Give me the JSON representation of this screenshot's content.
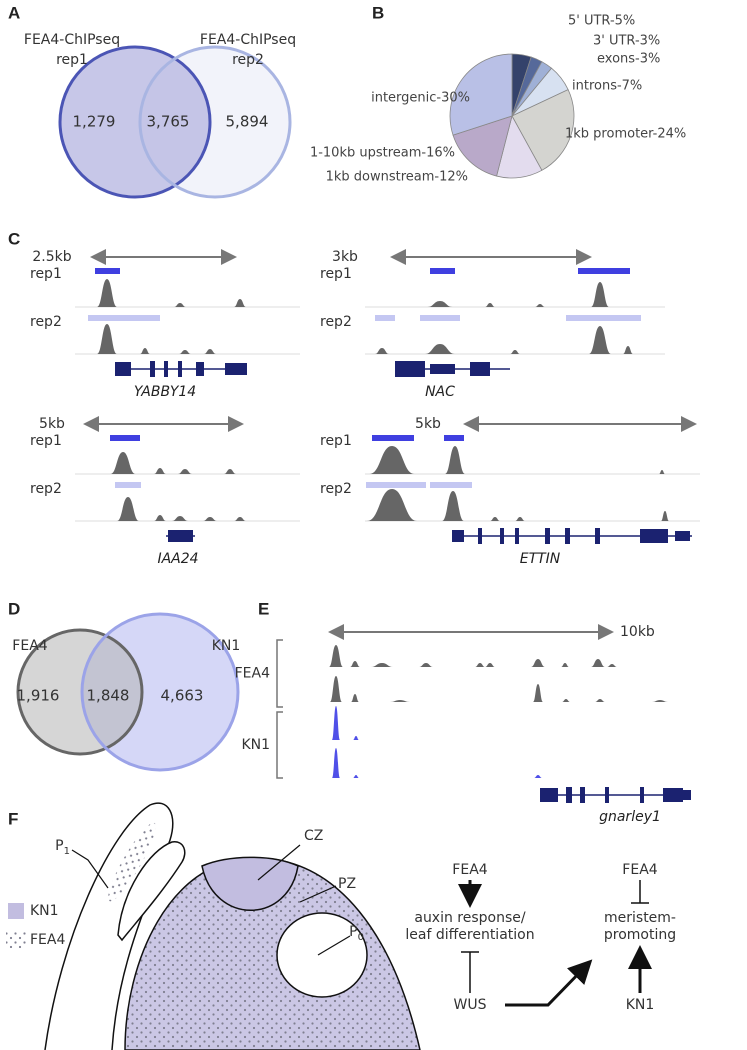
{
  "panel_letters": [
    "A",
    "B",
    "C",
    "D",
    "E",
    "F"
  ],
  "panel_a": {
    "set1": [
      "FEA4-ChIPseq",
      "rep1"
    ],
    "set2": [
      "FEA4-ChIPseq",
      "rep2"
    ],
    "counts": [
      "1,279",
      "3,765",
      "5,894"
    ]
  },
  "chart_data": {
    "type": "pie",
    "categories": [
      "5' UTR-5%",
      "3' UTR-3%",
      "exons-3%",
      "introns-7%",
      "1kb promoter-24%",
      "1kb downstream-12%",
      "1-10kb upstream-16%",
      "intergenic-30%"
    ],
    "values": [
      5,
      3,
      3,
      7,
      24,
      12,
      16,
      30
    ],
    "colors": [
      "#34426b",
      "#56699a",
      "#9fb0d6",
      "#d7e1f1",
      "#d4d4d0",
      "#e3dcee",
      "#b9a9c9",
      "#b9c0e6"
    ]
  },
  "panel_c": {
    "rep_labels": [
      "rep1",
      "rep2"
    ],
    "scales": [
      "2.5kb",
      "3kb",
      "5kb",
      "5kb"
    ],
    "genes": [
      "YABBY14",
      "NAC",
      "IAA24",
      "ETTIN"
    ]
  },
  "panel_d": {
    "sets": [
      "FEA4",
      "KN1"
    ],
    "counts": [
      "1,916",
      "1,848",
      "4,663"
    ]
  },
  "panel_e": {
    "scale": "10kb",
    "tracks": [
      "FEA4",
      "KN1"
    ],
    "gene": "gnarley1"
  },
  "panel_f": {
    "p1": {
      "base": "P",
      "sub": "1"
    },
    "p0": {
      "base": "P",
      "sub": "0"
    },
    "zones": [
      "CZ",
      "PZ"
    ],
    "legend": [
      "KN1",
      "FEA4"
    ],
    "left_model": {
      "top": "FEA4",
      "middle": [
        "auxin response/",
        "leaf differentiation"
      ],
      "bottom": "WUS"
    },
    "right_model": {
      "top": "FEA4",
      "middle": [
        "meristem-",
        "promoting"
      ],
      "bottom": "KN1"
    }
  }
}
